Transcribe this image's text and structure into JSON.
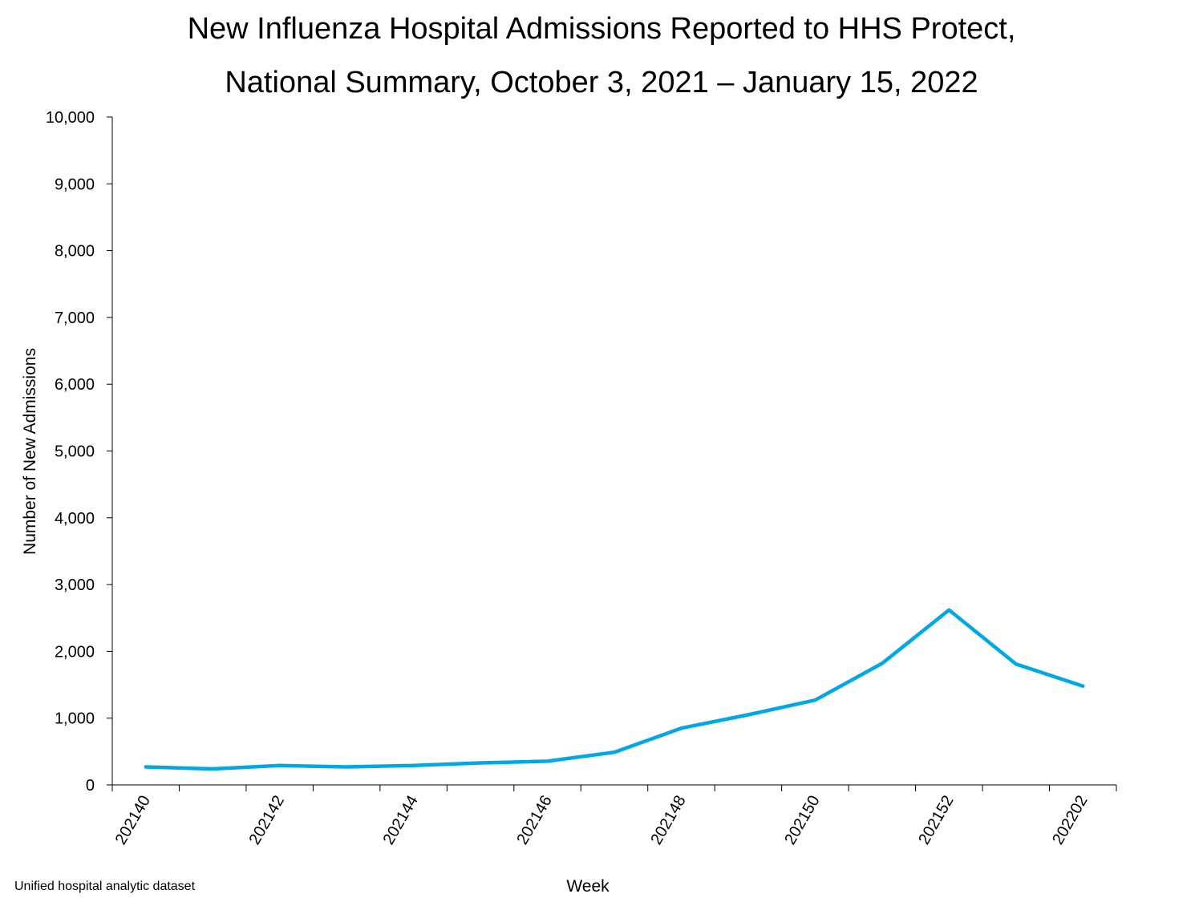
{
  "chart_data": {
    "type": "line",
    "title_line1": "New Influenza Hospital Admissions Reported to HHS Protect,",
    "title_line2": "National Summary, October 3, 2021 – January 15, 2022",
    "xlabel": "Week",
    "ylabel": "Number of New Admissions",
    "source_note": "Unified hospital analytic dataset",
    "ylim": [
      0,
      10000
    ],
    "y_ticks": [
      0,
      1000,
      2000,
      3000,
      4000,
      5000,
      6000,
      7000,
      8000,
      9000,
      10000
    ],
    "y_tick_labels": [
      "0",
      "1,000",
      "2,000",
      "3,000",
      "4,000",
      "5,000",
      "6,000",
      "7,000",
      "8,000",
      "9,000",
      "10,000"
    ],
    "x": [
      "202140",
      "202141",
      "202142",
      "202143",
      "202144",
      "202145",
      "202146",
      "202147",
      "202148",
      "202149",
      "202150",
      "202151",
      "202152",
      "202201",
      "202202"
    ],
    "x_tick_labels": [
      "202140",
      "202142",
      "202144",
      "202146",
      "202148",
      "202150",
      "202152",
      "202202"
    ],
    "series": [
      {
        "values": [
          270,
          240,
          290,
          270,
          290,
          330,
          355,
          490,
          850,
          1050,
          1270,
          1820,
          2620,
          1810,
          1480
        ],
        "color": "#00A8E8"
      }
    ],
    "grid": false,
    "legend": "none"
  }
}
